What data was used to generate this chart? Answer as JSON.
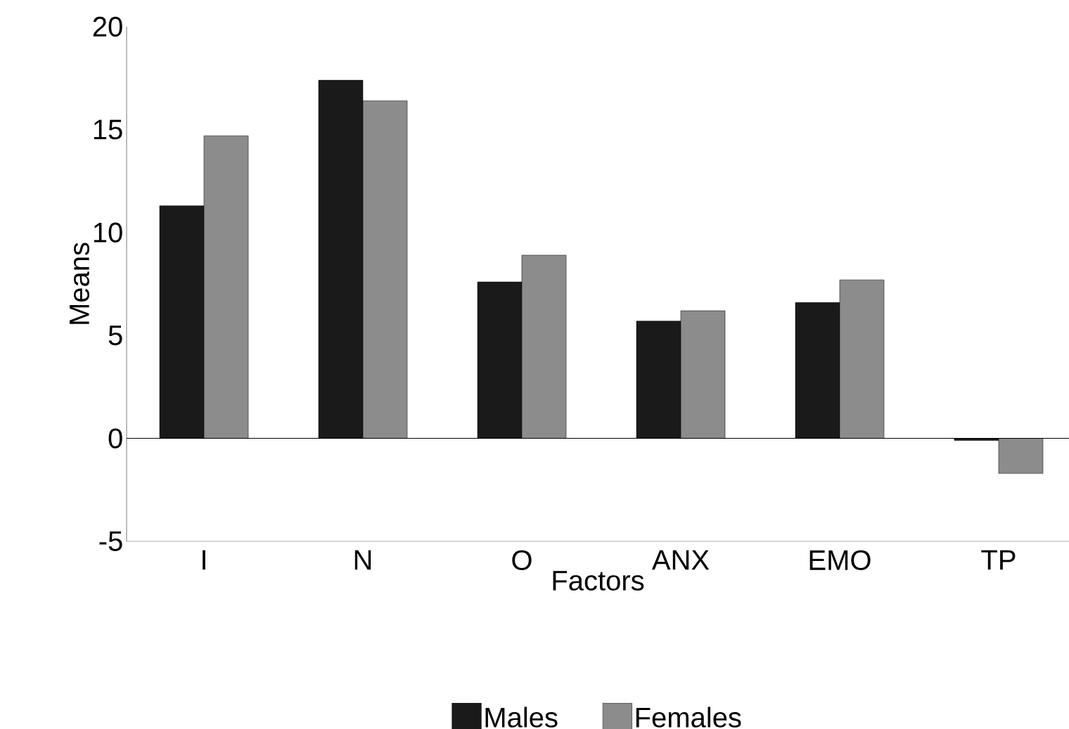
{
  "chart_data": {
    "type": "bar",
    "xlabel": "Factors",
    "ylabel": "Means",
    "categories": [
      "I",
      "N",
      "O",
      "ANX",
      "EMO",
      "TP"
    ],
    "series": [
      {
        "name": "Males",
        "color": "#1a1a1a",
        "values": [
          11.3,
          17.4,
          7.6,
          5.7,
          6.6,
          -0.1
        ]
      },
      {
        "name": "Females",
        "color": "#8c8c8c",
        "values": [
          14.7,
          16.4,
          8.9,
          6.2,
          7.7,
          -1.7
        ]
      }
    ],
    "ylim": [
      -5,
      20
    ],
    "yticks": [
      -5,
      0,
      5,
      10,
      15,
      20
    ],
    "ref_lines": [
      {
        "axis": "y",
        "value": 0
      }
    ],
    "grid": false,
    "legend": "bottom"
  }
}
